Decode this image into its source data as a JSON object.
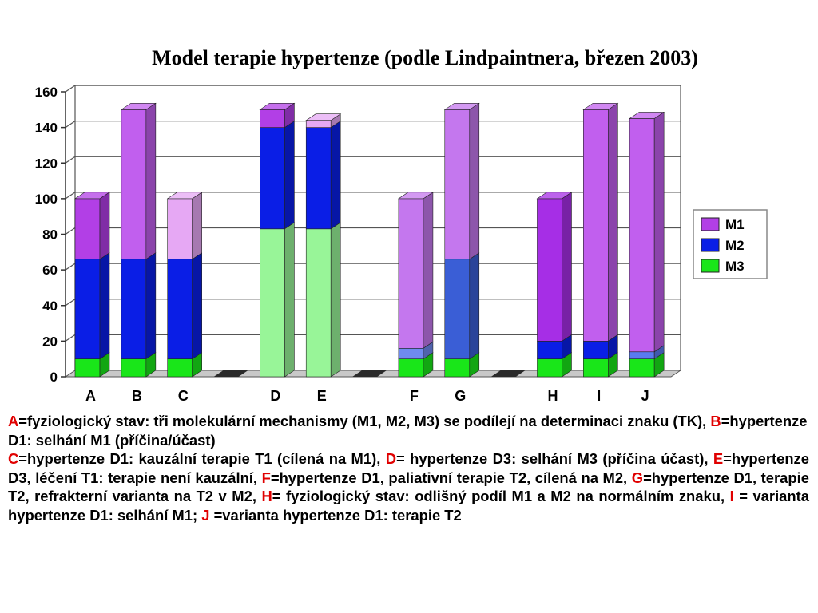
{
  "title": "Model terapie hypertenze (podle Lindpaintnera, březen  2003)",
  "chart_data": {
    "type": "bar",
    "stacked": true,
    "three_d": true,
    "categories": [
      "A",
      "B",
      "C",
      "",
      "D",
      "E",
      "",
      "F",
      "G",
      "",
      "H",
      "I",
      "J"
    ],
    "ylim": [
      0,
      160
    ],
    "yticks": [
      0,
      20,
      40,
      60,
      80,
      100,
      120,
      140,
      160
    ],
    "grid": true,
    "legend_position": "right",
    "series": [
      {
        "name": "M3",
        "color": "#19e619",
        "values": [
          10,
          10,
          10,
          0,
          83,
          83,
          0,
          10,
          10,
          0,
          10,
          10,
          10
        ]
      },
      {
        "name": "M2",
        "color": "#0a1ee6",
        "values": [
          56,
          56,
          56,
          0,
          57,
          57,
          0,
          6,
          56,
          0,
          10,
          10,
          4
        ]
      },
      {
        "name": "M1",
        "color": "#b23fe6",
        "values": [
          34,
          84,
          34,
          0,
          10,
          4,
          0,
          84,
          84,
          0,
          80,
          130,
          131
        ]
      }
    ],
    "bar_colors": [
      [
        "#19e619",
        "#0a1ee6",
        "#b23fe6"
      ],
      [
        "#19e619",
        "#0a1ee6",
        "#c15fee"
      ],
      [
        "#19e619",
        "#0a1ee6",
        "#e6a8f4"
      ],
      [
        "#19e619",
        "#0a1ee6",
        "#b23fe6"
      ],
      [
        "#98f598",
        "#0a1ee6",
        "#b23fe6"
      ],
      [
        "#98f598",
        "#0a1ee6",
        "#e6a8f4"
      ],
      [
        "#19e619",
        "#0a1ee6",
        "#b23fe6"
      ],
      [
        "#19e619",
        "#6f8af0",
        "#c477ee"
      ],
      [
        "#19e619",
        "#3a5ed6",
        "#c477ee"
      ],
      [
        "#19e619",
        "#0a1ee6",
        "#b23fe6"
      ],
      [
        "#19e619",
        "#0a1ee6",
        "#a62ee6"
      ],
      [
        "#19e619",
        "#0a1ee6",
        "#c15fee"
      ],
      [
        "#19e619",
        "#5a7af0",
        "#c15fee"
      ]
    ]
  },
  "caption": {
    "p1": [
      {
        "t": "A",
        "red": true
      },
      {
        "t": "=fyziologický stav: tři molekulární mechanismy (M1, M2, M3) se podílejí na determinaci znaku (TK), "
      },
      {
        "t": "B",
        "red": true
      },
      {
        "t": "=hypertenze D1: selhání M1 (příčina/účast)"
      }
    ],
    "p2": [
      {
        "t": "C",
        "red": true
      },
      {
        "t": "=hypertenze D1: kauzální terapie T1 (cílená na M1), "
      },
      {
        "t": "D",
        "red": true
      },
      {
        "t": "= hypertenze D3: selhání M3 (příčina účast), "
      },
      {
        "t": "E",
        "red": true
      },
      {
        "t": "=hypertenze D3, léčení T1: terapie není kauzální, "
      },
      {
        "t": "F",
        "red": true
      },
      {
        "t": "=hypertenze D1, paliativní terapie T2, cílená na M2, "
      },
      {
        "t": "G",
        "red": true
      },
      {
        "t": "=hypertenze D1,  terapie T2, refrakterní varianta na T2 v M2,  "
      },
      {
        "t": "H",
        "red": true
      },
      {
        "t": "= fyziologický stav: odlišný podíl M1 a M2 na normálním znaku, "
      },
      {
        "t": "I",
        "red": true
      },
      {
        "t": " =  varianta hypertenze D1: selhání M1; "
      },
      {
        "t": "J",
        "red": true
      },
      {
        "t": " =varianta  hypertenze D1: terapie T2"
      }
    ]
  }
}
